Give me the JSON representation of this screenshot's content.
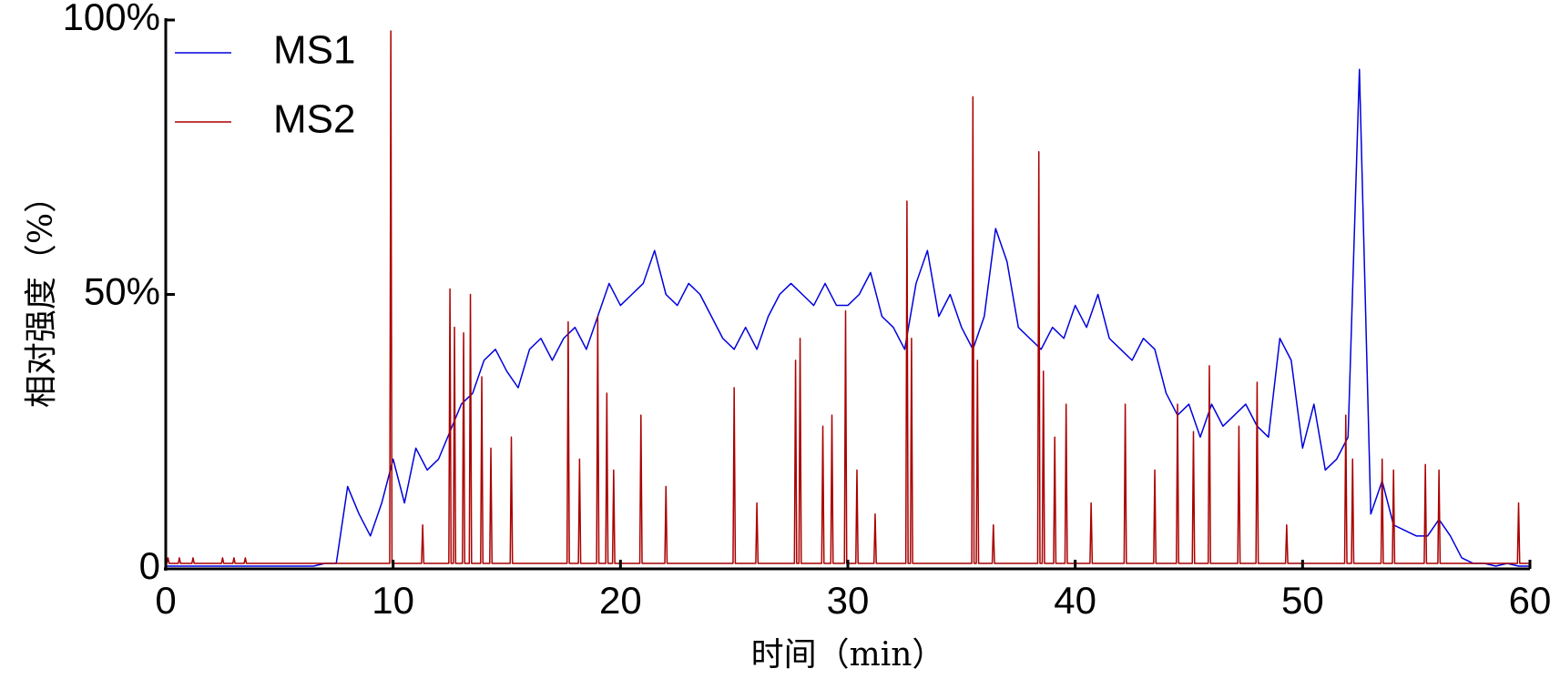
{
  "chart_data": {
    "type": "line",
    "xlabel": "时间（min）",
    "ylabel": "相对强度（%）",
    "xlim": [
      0,
      60
    ],
    "xticks": [
      0,
      10,
      20,
      30,
      40,
      50,
      60
    ],
    "ylim": [
      0,
      100
    ],
    "yticks": [
      0,
      {
        "value": 50,
        "label": "50%"
      },
      {
        "value": 100,
        "label": "100%"
      }
    ],
    "legend": "upper left",
    "series": [
      {
        "name": "MS1",
        "color": "#0000dd",
        "x": [
          0,
          0.5,
          1,
          1.5,
          2,
          2.5,
          3,
          3.5,
          4,
          4.5,
          5,
          5.5,
          6,
          6.5,
          7,
          7.5,
          8,
          8.5,
          9,
          9.5,
          10,
          10.5,
          11,
          11.5,
          12,
          12.5,
          13,
          13.5,
          14,
          14.5,
          15,
          15.5,
          16,
          16.5,
          17,
          17.5,
          18,
          18.5,
          19,
          19.5,
          20,
          20.5,
          21,
          21.5,
          22,
          22.5,
          23,
          23.5,
          24,
          24.5,
          25,
          25.5,
          26,
          26.5,
          27,
          27.5,
          28,
          28.5,
          29,
          29.5,
          30,
          30.5,
          31,
          31.5,
          32,
          32.5,
          33,
          33.5,
          34,
          34.5,
          35,
          35.5,
          36,
          36.5,
          37,
          37.5,
          38,
          38.5,
          39,
          39.5,
          40,
          40.5,
          41,
          41.5,
          42,
          42.5,
          43,
          43.5,
          44,
          44.5,
          45,
          45.5,
          46,
          46.5,
          47,
          47.5,
          48,
          48.5,
          49,
          49.5,
          50,
          50.5,
          51,
          51.5,
          52,
          52.5,
          53,
          53.5,
          54,
          54.5,
          55,
          55.5,
          56,
          56.5,
          57,
          57.5,
          58,
          58.5,
          59,
          59.5,
          60
        ],
        "values": [
          0.5,
          0.5,
          0.5,
          0.5,
          0.5,
          0.5,
          0.5,
          0.5,
          0.5,
          0.5,
          0.5,
          0.5,
          0.5,
          0.5,
          1,
          1,
          15,
          10,
          6,
          12,
          20,
          12,
          22,
          18,
          20,
          25,
          30,
          32,
          38,
          40,
          36,
          33,
          40,
          42,
          38,
          42,
          44,
          40,
          46,
          52,
          48,
          50,
          52,
          58,
          50,
          48,
          52,
          50,
          46,
          42,
          40,
          44,
          40,
          46,
          50,
          52,
          50,
          48,
          52,
          48,
          48,
          50,
          54,
          46,
          44,
          40,
          52,
          58,
          46,
          50,
          44,
          40,
          46,
          62,
          56,
          44,
          42,
          40,
          44,
          42,
          48,
          44,
          50,
          42,
          40,
          38,
          42,
          40,
          32,
          28,
          30,
          24,
          30,
          26,
          28,
          30,
          26,
          24,
          42,
          38,
          22,
          30,
          18,
          20,
          24,
          91,
          10,
          16,
          8,
          7,
          6,
          6,
          9,
          6,
          2,
          1,
          1,
          0.5,
          1,
          0.5,
          0.5
        ]
      },
      {
        "name": "MS2",
        "color": "#aa0000",
        "x": [
          0,
          0.05,
          0.1,
          0.15,
          0.55,
          0.6,
          0.65,
          1.15,
          1.2,
          1.25,
          2.45,
          2.5,
          2.55,
          2.95,
          3.0,
          3.05,
          3.45,
          3.5,
          3.55,
          9.85,
          9.9,
          9.95,
          11.25,
          11.3,
          11.35,
          12.45,
          12.5,
          12.55,
          12.65,
          12.7,
          12.75,
          13.05,
          13.1,
          13.15,
          13.35,
          13.4,
          13.45,
          13.85,
          13.9,
          13.95,
          14.25,
          14.3,
          14.35,
          15.15,
          15.2,
          15.25,
          17.65,
          17.7,
          17.75,
          18.15,
          18.2,
          18.25,
          18.95,
          19.0,
          19.05,
          19.35,
          19.4,
          19.45,
          19.65,
          19.7,
          19.75,
          20.85,
          20.9,
          20.95,
          21.95,
          22.0,
          22.05,
          24.95,
          25.0,
          25.05,
          25.95,
          26.0,
          26.05,
          27.65,
          27.7,
          27.75,
          27.85,
          27.9,
          27.95,
          28.85,
          28.9,
          28.95,
          29.25,
          29.3,
          29.35,
          29.85,
          29.9,
          29.95,
          30.35,
          30.4,
          30.45,
          31.15,
          31.2,
          31.25,
          32.55,
          32.6,
          32.65,
          32.75,
          32.8,
          32.85,
          35.45,
          35.5,
          35.55,
          35.65,
          35.7,
          35.75,
          36.35,
          36.4,
          36.45,
          38.35,
          38.4,
          38.45,
          38.55,
          38.6,
          38.65,
          39.05,
          39.1,
          39.15,
          39.55,
          39.6,
          39.65,
          40.65,
          40.7,
          40.75,
          42.15,
          42.2,
          42.25,
          43.45,
          43.5,
          43.55,
          44.45,
          44.5,
          44.55,
          45.15,
          45.2,
          45.25,
          45.85,
          45.9,
          45.95,
          47.15,
          47.2,
          47.25,
          47.95,
          48.0,
          48.05,
          49.25,
          49.3,
          49.35,
          51.85,
          51.9,
          51.95,
          52.15,
          52.2,
          52.25,
          53.45,
          53.5,
          53.55,
          53.95,
          54.0,
          54.05,
          55.35,
          55.4,
          55.45,
          55.95,
          56.0,
          56.05,
          59.45,
          59.5,
          59.55,
          60
        ],
        "values": [
          1,
          1,
          2,
          1,
          1,
          2,
          1,
          1,
          2,
          1,
          1,
          2,
          1,
          1,
          2,
          1,
          1,
          2,
          1,
          1,
          98,
          1,
          1,
          8,
          1,
          1,
          51,
          1,
          1,
          44,
          1,
          1,
          43,
          1,
          1,
          50,
          1,
          1,
          35,
          1,
          1,
          22,
          1,
          1,
          24,
          1,
          1,
          45,
          1,
          1,
          20,
          1,
          1,
          46,
          1,
          1,
          32,
          1,
          1,
          18,
          1,
          1,
          28,
          1,
          1,
          15,
          1,
          1,
          33,
          1,
          1,
          12,
          1,
          1,
          38,
          1,
          1,
          42,
          1,
          1,
          26,
          1,
          1,
          28,
          1,
          1,
          47,
          1,
          1,
          18,
          1,
          1,
          10,
          1,
          1,
          67,
          1,
          1,
          42,
          1,
          1,
          86,
          1,
          1,
          38,
          1,
          1,
          8,
          1,
          1,
          76,
          1,
          1,
          36,
          1,
          1,
          24,
          1,
          1,
          30,
          1,
          1,
          12,
          1,
          1,
          30,
          1,
          1,
          18,
          1,
          1,
          30,
          1,
          1,
          25,
          1,
          1,
          37,
          1,
          1,
          26,
          1,
          1,
          34,
          1,
          1,
          8,
          1,
          1,
          28,
          1,
          1,
          20,
          1,
          1,
          20,
          1,
          1,
          18,
          1,
          1,
          19,
          1,
          1,
          18,
          1,
          1,
          12,
          1,
          1
        ]
      }
    ]
  }
}
